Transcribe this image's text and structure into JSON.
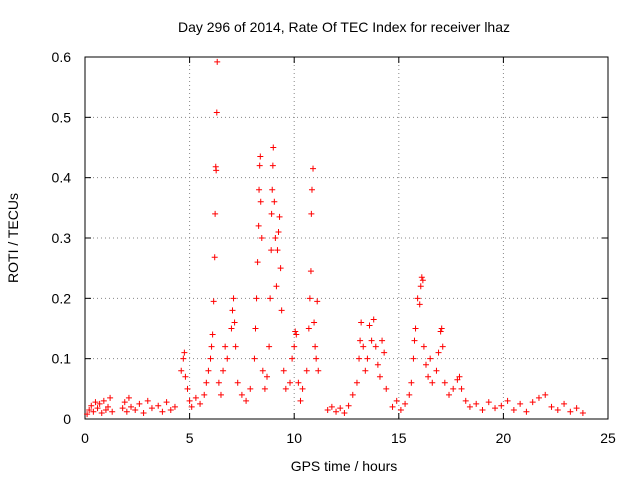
{
  "chart_data": {
    "type": "scatter",
    "title": "Day 296 of 2014, Rate Of TEC Index for receiver lhaz",
    "xlabel": "GPS time / hours",
    "ylabel": "ROTI / TECUs",
    "xlim": [
      0,
      25
    ],
    "ylim": [
      0,
      0.6
    ],
    "x_ticks": [
      0,
      5,
      10,
      15,
      20,
      25
    ],
    "y_ticks": [
      0,
      0.1,
      0.2,
      0.3,
      0.4,
      0.5,
      0.6
    ],
    "x_tick_labels": [
      "0",
      "5",
      "10",
      "15",
      "20",
      "25"
    ],
    "y_tick_labels": [
      "0",
      "0.1",
      "0.2",
      "0.3",
      "0.4",
      "0.5",
      "0.6"
    ],
    "grid": true,
    "marker": "plus",
    "color": "#ff0000",
    "series": [
      {
        "name": "ROTI",
        "points": [
          [
            0.1,
            0.008
          ],
          [
            0.2,
            0.015
          ],
          [
            0.3,
            0.022
          ],
          [
            0.4,
            0.012
          ],
          [
            0.5,
            0.028
          ],
          [
            0.6,
            0.018
          ],
          [
            0.7,
            0.025
          ],
          [
            0.8,
            0.01
          ],
          [
            0.9,
            0.03
          ],
          [
            1.0,
            0.015
          ],
          [
            1.1,
            0.02
          ],
          [
            1.2,
            0.035
          ],
          [
            1.3,
            0.012
          ],
          [
            1.8,
            0.018
          ],
          [
            1.9,
            0.028
          ],
          [
            2.0,
            0.012
          ],
          [
            2.1,
            0.035
          ],
          [
            2.2,
            0.02
          ],
          [
            2.4,
            0.015
          ],
          [
            2.6,
            0.025
          ],
          [
            2.8,
            0.01
          ],
          [
            3.0,
            0.03
          ],
          [
            3.2,
            0.018
          ],
          [
            3.5,
            0.022
          ],
          [
            3.7,
            0.012
          ],
          [
            3.9,
            0.028
          ],
          [
            4.1,
            0.015
          ],
          [
            4.3,
            0.02
          ],
          [
            4.6,
            0.08
          ],
          [
            4.7,
            0.1
          ],
          [
            4.75,
            0.11
          ],
          [
            4.8,
            0.07
          ],
          [
            4.9,
            0.05
          ],
          [
            5.0,
            0.03
          ],
          [
            5.1,
            0.02
          ],
          [
            5.3,
            0.035
          ],
          [
            5.5,
            0.025
          ],
          [
            5.7,
            0.04
          ],
          [
            5.8,
            0.06
          ],
          [
            5.9,
            0.08
          ],
          [
            6.0,
            0.1
          ],
          [
            6.05,
            0.12
          ],
          [
            6.1,
            0.14
          ],
          [
            6.15,
            0.195
          ],
          [
            6.2,
            0.268
          ],
          [
            6.22,
            0.34
          ],
          [
            6.25,
            0.418
          ],
          [
            6.27,
            0.412
          ],
          [
            6.3,
            0.508
          ],
          [
            6.32,
            0.592
          ],
          [
            6.4,
            0.06
          ],
          [
            6.5,
            0.04
          ],
          [
            6.6,
            0.08
          ],
          [
            6.7,
            0.12
          ],
          [
            6.8,
            0.1
          ],
          [
            7.0,
            0.15
          ],
          [
            7.05,
            0.18
          ],
          [
            7.1,
            0.2
          ],
          [
            7.15,
            0.16
          ],
          [
            7.2,
            0.12
          ],
          [
            7.3,
            0.06
          ],
          [
            7.5,
            0.04
          ],
          [
            7.7,
            0.03
          ],
          [
            7.9,
            0.05
          ],
          [
            8.1,
            0.1
          ],
          [
            8.15,
            0.15
          ],
          [
            8.2,
            0.2
          ],
          [
            8.25,
            0.26
          ],
          [
            8.3,
            0.32
          ],
          [
            8.32,
            0.38
          ],
          [
            8.35,
            0.42
          ],
          [
            8.38,
            0.435
          ],
          [
            8.4,
            0.36
          ],
          [
            8.45,
            0.3
          ],
          [
            8.5,
            0.08
          ],
          [
            8.6,
            0.05
          ],
          [
            8.7,
            0.07
          ],
          [
            8.8,
            0.12
          ],
          [
            8.85,
            0.2
          ],
          [
            8.9,
            0.28
          ],
          [
            8.92,
            0.34
          ],
          [
            8.95,
            0.38
          ],
          [
            8.98,
            0.42
          ],
          [
            9.0,
            0.45
          ],
          [
            9.05,
            0.36
          ],
          [
            9.1,
            0.3
          ],
          [
            9.15,
            0.22
          ],
          [
            9.2,
            0.28
          ],
          [
            9.25,
            0.31
          ],
          [
            9.3,
            0.335
          ],
          [
            9.35,
            0.25
          ],
          [
            9.4,
            0.18
          ],
          [
            9.5,
            0.08
          ],
          [
            9.6,
            0.05
          ],
          [
            9.8,
            0.06
          ],
          [
            9.9,
            0.1
          ],
          [
            10.0,
            0.12
          ],
          [
            10.05,
            0.145
          ],
          [
            10.1,
            0.14
          ],
          [
            10.2,
            0.06
          ],
          [
            10.3,
            0.03
          ],
          [
            10.4,
            0.05
          ],
          [
            10.6,
            0.08
          ],
          [
            10.7,
            0.15
          ],
          [
            10.75,
            0.2
          ],
          [
            10.8,
            0.245
          ],
          [
            10.82,
            0.34
          ],
          [
            10.85,
            0.38
          ],
          [
            10.9,
            0.415
          ],
          [
            10.95,
            0.16
          ],
          [
            11.0,
            0.12
          ],
          [
            11.05,
            0.1
          ],
          [
            11.1,
            0.195
          ],
          [
            11.15,
            0.08
          ],
          [
            11.6,
            0.015
          ],
          [
            11.8,
            0.02
          ],
          [
            12.0,
            0.012
          ],
          [
            12.2,
            0.018
          ],
          [
            12.4,
            0.01
          ],
          [
            12.6,
            0.022
          ],
          [
            12.8,
            0.04
          ],
          [
            13.0,
            0.06
          ],
          [
            13.1,
            0.1
          ],
          [
            13.15,
            0.13
          ],
          [
            13.2,
            0.16
          ],
          [
            13.3,
            0.12
          ],
          [
            13.4,
            0.08
          ],
          [
            13.5,
            0.1
          ],
          [
            13.6,
            0.155
          ],
          [
            13.7,
            0.13
          ],
          [
            13.8,
            0.165
          ],
          [
            13.9,
            0.12
          ],
          [
            14.0,
            0.09
          ],
          [
            14.1,
            0.07
          ],
          [
            14.2,
            0.13
          ],
          [
            14.3,
            0.11
          ],
          [
            14.4,
            0.05
          ],
          [
            14.7,
            0.02
          ],
          [
            14.9,
            0.03
          ],
          [
            15.1,
            0.015
          ],
          [
            15.3,
            0.025
          ],
          [
            15.5,
            0.04
          ],
          [
            15.6,
            0.06
          ],
          [
            15.7,
            0.1
          ],
          [
            15.75,
            0.13
          ],
          [
            15.8,
            0.15
          ],
          [
            15.9,
            0.2
          ],
          [
            16.0,
            0.19
          ],
          [
            16.05,
            0.22
          ],
          [
            16.1,
            0.235
          ],
          [
            16.15,
            0.23
          ],
          [
            16.2,
            0.12
          ],
          [
            16.3,
            0.09
          ],
          [
            16.4,
            0.07
          ],
          [
            16.5,
            0.1
          ],
          [
            16.6,
            0.06
          ],
          [
            16.8,
            0.08
          ],
          [
            16.9,
            0.11
          ],
          [
            17.0,
            0.145
          ],
          [
            17.05,
            0.15
          ],
          [
            17.1,
            0.12
          ],
          [
            17.2,
            0.06
          ],
          [
            17.4,
            0.04
          ],
          [
            17.6,
            0.05
          ],
          [
            17.8,
            0.065
          ],
          [
            17.9,
            0.07
          ],
          [
            18.0,
            0.05
          ],
          [
            18.2,
            0.03
          ],
          [
            18.4,
            0.02
          ],
          [
            18.7,
            0.025
          ],
          [
            19.0,
            0.015
          ],
          [
            19.3,
            0.028
          ],
          [
            19.6,
            0.018
          ],
          [
            19.9,
            0.022
          ],
          [
            20.2,
            0.03
          ],
          [
            20.5,
            0.015
          ],
          [
            20.8,
            0.025
          ],
          [
            21.1,
            0.012
          ],
          [
            21.4,
            0.028
          ],
          [
            21.7,
            0.035
          ],
          [
            22.0,
            0.04
          ],
          [
            22.3,
            0.02
          ],
          [
            22.6,
            0.015
          ],
          [
            22.9,
            0.025
          ],
          [
            23.2,
            0.012
          ],
          [
            23.5,
            0.018
          ],
          [
            23.8,
            0.01
          ]
        ]
      }
    ]
  }
}
